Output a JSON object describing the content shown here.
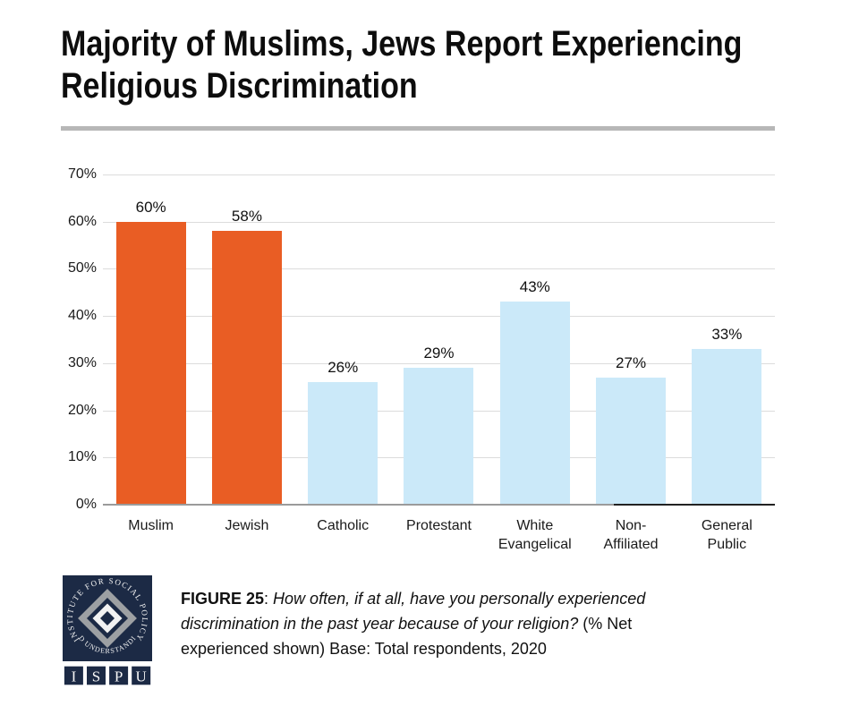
{
  "header": {
    "title_line1": "Majority of Muslims, Jews Report Experiencing",
    "title_line2": "Religious Discrimination"
  },
  "chart_data": {
    "type": "bar",
    "title": "Majority of Muslims, Jews Report Experiencing Religious Discrimination",
    "categories": [
      "Muslim",
      "Jewish",
      "Catholic",
      "Protestant",
      "White Evangelical",
      "Non-Affiliated",
      "General Public"
    ],
    "values": [
      60,
      58,
      26,
      29,
      43,
      27,
      33
    ],
    "data_labels": [
      "60%",
      "58%",
      "26%",
      "29%",
      "43%",
      "27%",
      "33%"
    ],
    "bar_colors": [
      "#E95D24",
      "#E95D24",
      "#CBE9F9",
      "#CBE9F9",
      "#CBE9F9",
      "#CBE9F9",
      "#CBE9F9"
    ],
    "highlight_color": "#E95D24",
    "default_color": "#CBE9F9",
    "y_ticks": [
      "70%",
      "60%",
      "50%",
      "40%",
      "30%",
      "20%",
      "10%",
      "0%"
    ],
    "ylim": [
      0,
      70
    ],
    "xlabel": "",
    "ylabel": "",
    "grid": "horizontal",
    "legend": "none"
  },
  "footer": {
    "figure_label": "FIGURE 25",
    "separator": ": ",
    "caption_question": "How often, if at all, have you personally experienced discrimination in the past year because of your religion?",
    "caption_rest": " (% Net experienced shown) Base: Total respondents, 2020",
    "logo": {
      "circle_text_top": "INSTITUTE FOR SOCIAL POLICY",
      "circle_text_bottom": "AND UNDERSTANDING",
      "acronym": [
        "I",
        "S",
        "P",
        "U"
      ],
      "navy": "#1C2A45",
      "gray": "#9DA0A3"
    }
  },
  "colors": {
    "background": "#FFFFFF",
    "text": "#111111",
    "divider": "#B7B7B7",
    "gridline": "#DCDCDC",
    "baseline_gray": "#9B9B9B",
    "baseline_dark": "#222222"
  }
}
